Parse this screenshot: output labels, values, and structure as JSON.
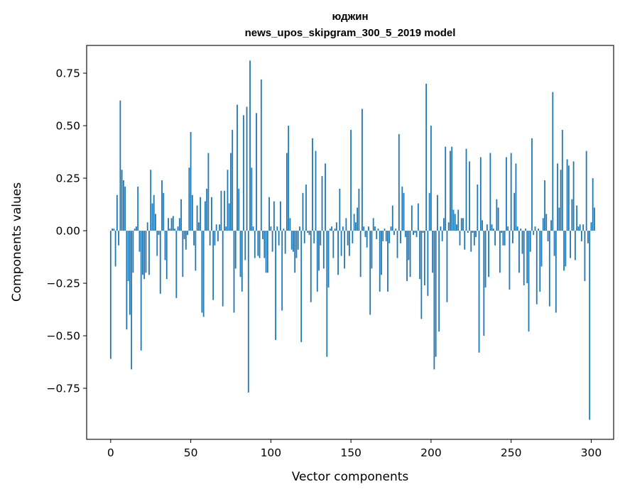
{
  "chart_data": {
    "type": "bar",
    "title": "юджин",
    "subtitle": "news_upos_skipgram_300_5_2019 model",
    "xlabel": "Vector components",
    "ylabel": "Components values",
    "xlim": [
      -15,
      314
    ],
    "ylim": [
      -0.993,
      0.882
    ],
    "xticks": [
      0,
      50,
      100,
      150,
      200,
      250,
      300
    ],
    "yticks": [
      -0.75,
      -0.5,
      -0.25,
      0.0,
      0.25,
      0.5,
      0.75
    ],
    "xtick_labels": [
      "0",
      "50",
      "100",
      "150",
      "200",
      "250",
      "300"
    ],
    "ytick_labels": [
      "−0.75",
      "−0.50",
      "−0.25",
      "0.00",
      "0.25",
      "0.50",
      "0.75"
    ],
    "color": "#1f77b4",
    "grid": false,
    "values": [
      -0.61,
      0.01,
      0.01,
      -0.17,
      0.17,
      -0.07,
      0.62,
      0.29,
      0.24,
      0.21,
      -0.47,
      -0.24,
      -0.4,
      -0.66,
      -0.2,
      0.01,
      0.02,
      0.21,
      -0.1,
      -0.57,
      -0.21,
      -0.23,
      -0.2,
      0.04,
      -0.21,
      0.29,
      0.13,
      0.17,
      0.08,
      -0.12,
      -0.02,
      -0.3,
      0.24,
      0.18,
      -0.14,
      -0.23,
      0.06,
      0.01,
      0.06,
      0.07,
      0.01,
      -0.32,
      0.02,
      0.06,
      0.15,
      -0.22,
      -0.04,
      -0.09,
      -0.02,
      0.3,
      0.47,
      0.17,
      -0.07,
      -0.19,
      0.12,
      0.04,
      0.16,
      -0.39,
      -0.41,
      0.14,
      0.2,
      0.37,
      -0.07,
      0.16,
      -0.33,
      -0.07,
      0.03,
      -0.05,
      0.03,
      0.19,
      -0.36,
      0.19,
      0.02,
      0.29,
      0.13,
      0.37,
      0.48,
      -0.39,
      -0.18,
      0.6,
      0.2,
      -0.22,
      -0.29,
      0.55,
      -0.14,
      0.59,
      -0.77,
      0.81,
      0.3,
      0.02,
      -0.13,
      0.56,
      -0.12,
      -0.13,
      0.72,
      -0.04,
      -0.13,
      -0.2,
      -0.2,
      0.16,
      0.02,
      -0.1,
      0.14,
      -0.52,
      0.02,
      -0.07,
      0.14,
      -0.38,
      0.01,
      -0.11,
      0.37,
      0.5,
      0.06,
      -0.09,
      -0.1,
      -0.2,
      -0.13,
      -0.09,
      0.02,
      -0.53,
      0.18,
      -0.06,
      0.22,
      -0.01,
      -0.02,
      -0.34,
      0.44,
      -0.06,
      0.38,
      -0.29,
      -0.19,
      -0.07,
      0.26,
      -0.18,
      0.32,
      -0.6,
      -0.27,
      0.01,
      0.02,
      -0.13,
      0.01,
      0.04,
      -0.21,
      0.2,
      -0.12,
      0.02,
      -0.18,
      0.06,
      -0.07,
      -0.12,
      0.48,
      -0.06,
      0.08,
      0.04,
      0.11,
      0.2,
      -0.22,
      0.58,
      0.02,
      -0.03,
      -0.08,
      0.02,
      -0.4,
      -0.18,
      0.06,
      0.02,
      -0.04,
      0.01,
      -0.29,
      -0.21,
      -0.05,
      0.01,
      -0.05,
      -0.29,
      -0.06,
      0.02,
      0.12,
      -0.02,
      0.01,
      -0.13,
      0.46,
      -0.06,
      0.21,
      0.18,
      -0.03,
      -0.24,
      -0.14,
      -0.22,
      0.12,
      -0.02,
      -0.01,
      -0.03,
      0.13,
      -0.23,
      -0.42,
      -0.01,
      -0.26,
      0.7,
      -0.31,
      0.18,
      0.5,
      -0.2,
      -0.66,
      -0.6,
      0.17,
      -0.48,
      0.02,
      -0.05,
      0.06,
      0.4,
      -0.34,
      0.04,
      0.38,
      0.4,
      0.1,
      0.08,
      0.03,
      0.1,
      -0.07,
      0.06,
      0.06,
      -0.09,
      0.39,
      -0.01,
      0.33,
      -0.1,
      -0.01,
      -0.07,
      -0.03,
      0.22,
      -0.58,
      0.35,
      0.05,
      -0.5,
      -0.27,
      0.03,
      -0.22,
      0.37,
      0.03,
      0.01,
      -0.07,
      0.15,
      0.11,
      -0.2,
      -0.01,
      -0.07,
      -0.07,
      0.35,
      0.02,
      -0.28,
      0.37,
      -0.06,
      0.18,
      0.32,
      0.02,
      -0.2,
      0.01,
      -0.11,
      -0.26,
      0.01,
      -0.25,
      -0.48,
      -0.1,
      0.44,
      -0.02,
      0.02,
      -0.35,
      0.01,
      -0.29,
      -0.17,
      0.06,
      0.24,
      0.08,
      -0.05,
      -0.36,
      0.05,
      0.66,
      -0.12,
      -0.39,
      0.32,
      0.11,
      0.29,
      0.48,
      -0.19,
      -0.17,
      0.34,
      0.31,
      -0.13,
      0.15,
      0.33,
      -0.14,
      0.12,
      0.02,
      0.03,
      -0.05,
      0.03,
      -0.24,
      0.38,
      -0.06,
      -0.9,
      0.04,
      0.25,
      0.11
    ]
  }
}
